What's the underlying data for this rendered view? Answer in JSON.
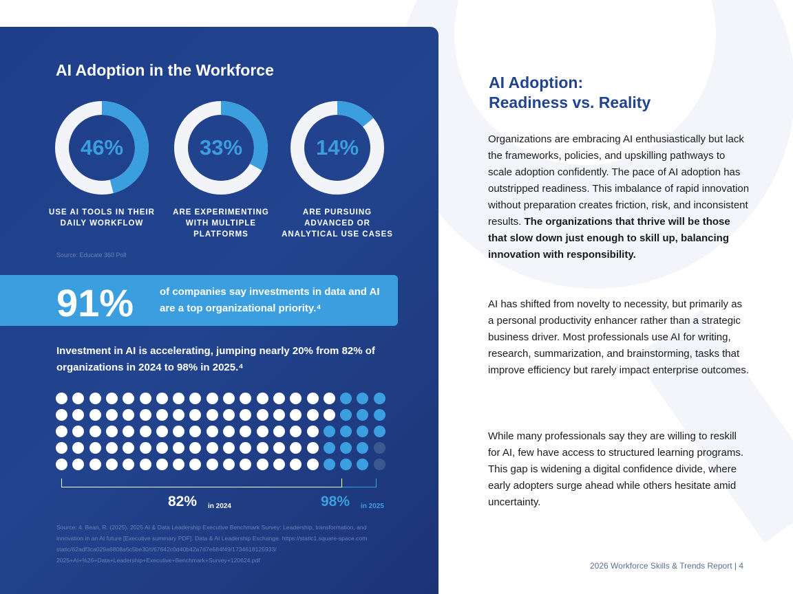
{
  "panel": {
    "title": "AI Adoption in the Workforce",
    "donuts": [
      {
        "value": "46%",
        "fraction": 0.46,
        "label": "USE AI TOOLS IN THEIR DAILY WORKFLOW"
      },
      {
        "value": "33%",
        "fraction": 0.33,
        "label": "ARE EXPERIMENTING WITH MULTIPLE PLATFORMS"
      },
      {
        "value": "14%",
        "fraction": 0.14,
        "label": "ARE PURSUING ADVANCED OR ANALYTICAL USE CASES"
      }
    ],
    "donut_source": "Source: Educate 360 Poll",
    "highlight": {
      "value": "91%",
      "text": "of companies say investments in data and AI are a top organizational priority.⁴"
    },
    "investment_text": "Investment in AI is accelerating, jumping nearly 20% from 82% of organizations in 2024 to 98% in 2025.⁴",
    "dot_chart": {
      "total": 100,
      "pct_2024": 82,
      "pct_2025": 98,
      "label_2024": "82%",
      "sub_2024": "in 2024",
      "label_2025": "98%",
      "sub_2025": "in 2025",
      "color_2024": "#ffffff",
      "color_2025": "#3b9ede",
      "color_rest": "#3a5a8f"
    },
    "long_source": "Source: 4. Bean, R. (2025). 2025 AI & Data Leadership Executive Benchmark Survey: Leadership, transformation, and innovation in an AI future [Executive summary PDF]. Data & AI Leadership Exchange. https://static1.square-space.com static/62adf3ca029a6808a6c5be30/t/67642c0d40b42a7d7e684f49/1734618125933/ 2025+AI+%26+Data+Leadership+Executive+Benchmark+Survey+120624.pdf"
  },
  "right": {
    "title_line1": "AI Adoption:",
    "title_line2": "Readiness vs. Reality",
    "p1_normal": "Organizations are embracing AI enthusiastically but lack the frameworks, policies, and upskilling pathways to scale adoption confidently. The pace of AI adoption has outstripped readiness. This imbalance of rapid innovation without preparation creates friction, risk, and inconsistent results. ",
    "p1_bold": "The organizations that thrive will be those that slow down just enough to skill up, balancing innovation with responsibility.",
    "p2": "AI has shifted from novelty to necessity, but primarily as a personal productivity enhancer rather than a strategic business driver. Most professionals use AI for writing, research, summarization, and brainstorming, tasks that improve efficiency but rarely impact enterprise outcomes.",
    "p3": "While many professionals say they are willing to reskill for AI, few have access to structured learning programs. This gap is widening a digital confidence divide, where early adopters surge ahead while others hesitate amid uncertainty."
  },
  "footer": "2026 Workforce Skills & Trends Report  |  4",
  "colors": {
    "panel_bg": "#22438e",
    "accent": "#3b9ede",
    "ring_track": "#f3f4f8"
  }
}
